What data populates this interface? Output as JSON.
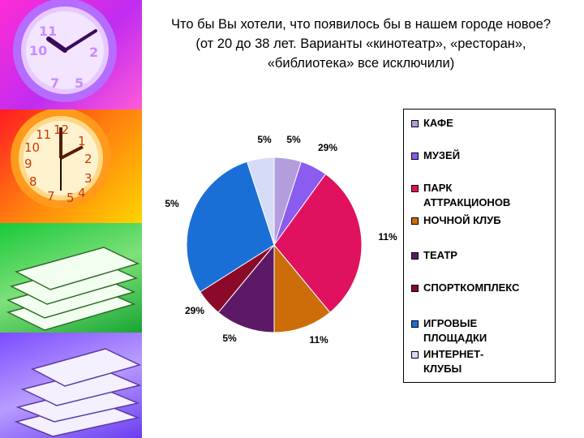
{
  "title": "Что бы Вы хотели, что появилось бы в нашем городе новое? (от 20 до 38 лет. Варианты «кинотеатр», «ресторан», «библиотека» все исключили)",
  "chart_data": {
    "type": "pie",
    "slices": [
      {
        "label": "КАФЕ",
        "value": 5,
        "value_label": "5%",
        "color": "#b39ddb"
      },
      {
        "label": "МУЗЕЙ",
        "value": 5,
        "value_label": "5%",
        "color": "#8a5cf0"
      },
      {
        "label": "ПАРК АТТРАКЦИОНОВ",
        "value": 29,
        "value_label": "29%",
        "color": "#e0115f"
      },
      {
        "label": "НОЧНОЙ КЛУБ",
        "value": 11,
        "value_label": "11%",
        "color": "#cc6d0a"
      },
      {
        "label": "ТЕАТР",
        "value": 11,
        "value_label": "11%",
        "color": "#5c1a66"
      },
      {
        "label": "СПОРТКОМПЛЕКС",
        "value": 5,
        "value_label": "5%",
        "color": "#8b0a2a"
      },
      {
        "label": "ИГРОВЫЕ ПЛОЩАДКИ",
        "value": 29,
        "value_label": "29%",
        "color": "#1a6fd6"
      },
      {
        "label": "ИНТЕРНЕТ-КЛУБЫ",
        "value": 5,
        "value_label": "5%",
        "color": "#d6dcf7"
      }
    ],
    "legend": {
      "placement": "right",
      "entries": [
        "КАФЕ",
        "МУЗЕЙ",
        "ПАРК\nАТТРАКЦИОНОВ",
        "НОЧНОЙ КЛУБ",
        "ТЕАТР",
        "СПОРТКОМПЛЕКС",
        "ИГРОВЫЕ\nПЛОЩАДКИ",
        "ИНТЕРНЕТ-\nКЛУБЫ"
      ]
    }
  }
}
